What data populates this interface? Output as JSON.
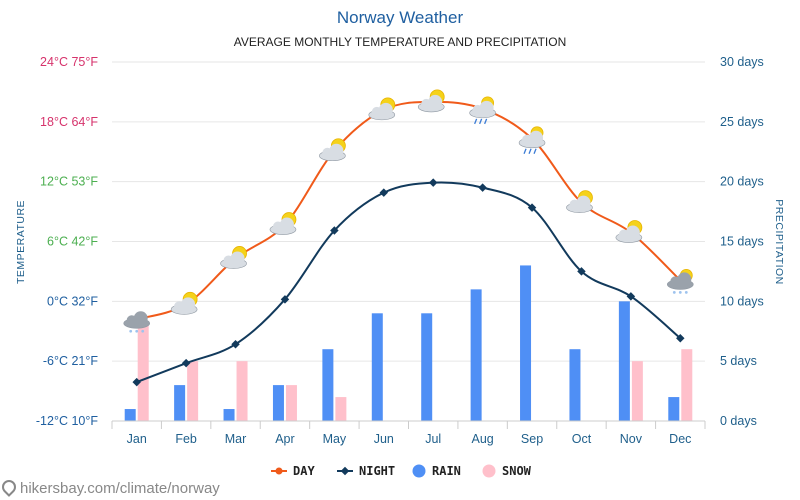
{
  "chart_data": {
    "type": "line+bar",
    "title": "Norway Weather",
    "subtitle": "AVERAGE MONTHLY TEMPERATURE AND PRECIPITATION",
    "ylabel_left": "TEMPERATURE",
    "ylabel_right": "PRECIPITATION",
    "categories": [
      "Jan",
      "Feb",
      "Mar",
      "Apr",
      "May",
      "Jun",
      "Jul",
      "Aug",
      "Sep",
      "Oct",
      "Nov",
      "Dec"
    ],
    "left_ticks": [
      {
        "value": -12,
        "label": "-12°C 10°F",
        "color": "#1f5fa0"
      },
      {
        "value": -6,
        "label": "-6°C 21°F",
        "color": "#1f5fa0"
      },
      {
        "value": 0,
        "label": "0°C 32°F",
        "color": "#1f5fa0"
      },
      {
        "value": 6,
        "label": "6°C 42°F",
        "color": "#4caf50"
      },
      {
        "value": 12,
        "label": "12°C 53°F",
        "color": "#4caf50"
      },
      {
        "value": 18,
        "label": "18°C 64°F",
        "color": "#d6336c"
      },
      {
        "value": 24,
        "label": "24°C 75°F",
        "color": "#d6336c"
      }
    ],
    "right_ticks": [
      {
        "value": 0,
        "label": "0 days"
      },
      {
        "value": 5,
        "label": "5 days"
      },
      {
        "value": 10,
        "label": "10 days"
      },
      {
        "value": 15,
        "label": "15 days"
      },
      {
        "value": 20,
        "label": "20 days"
      },
      {
        "value": 25,
        "label": "25 days"
      },
      {
        "value": 30,
        "label": "30 days"
      }
    ],
    "temp_range": [
      -12,
      24
    ],
    "days_range": [
      0,
      30
    ],
    "series": [
      {
        "name": "DAY",
        "kind": "line",
        "axis": "left",
        "color": "#f05a1a",
        "values": [
          -1.8,
          -0.3,
          4.3,
          7.7,
          15.1,
          19.2,
          20.0,
          19.3,
          16.3,
          9.9,
          6.9,
          2.1
        ]
      },
      {
        "name": "NIGHT",
        "kind": "line",
        "axis": "left",
        "color": "#123a5c",
        "values": [
          -8.1,
          -6.2,
          -4.3,
          0.2,
          7.1,
          10.9,
          11.9,
          11.4,
          9.4,
          3.0,
          0.5,
          -3.7
        ]
      },
      {
        "name": "RAIN",
        "kind": "bar",
        "axis": "right",
        "color": "#4f8ff5",
        "values": [
          1,
          3,
          1,
          3,
          6,
          9,
          9,
          11,
          13,
          6,
          10,
          2
        ]
      },
      {
        "name": "SNOW",
        "kind": "bar",
        "axis": "right",
        "color": "#ffc0cb",
        "values": [
          8,
          5,
          5,
          3,
          2,
          0,
          0,
          0,
          0,
          0,
          5,
          6
        ]
      }
    ],
    "weather_icons": [
      "snow-cloud-icon",
      "partly-cloudy-icon",
      "partly-cloudy-icon",
      "partly-cloudy-icon",
      "partly-cloudy-icon",
      "partly-cloudy-icon",
      "partly-cloudy-icon",
      "rain-cloud-icon",
      "rain-cloud-icon",
      "partly-cloudy-icon",
      "partly-cloudy-icon",
      "snow-cloud-icon"
    ],
    "legend": [
      "DAY",
      "NIGHT",
      "RAIN",
      "SNOW"
    ],
    "legend_position": "bottom-center",
    "grid": true
  },
  "footer": {
    "text": "hikersbay.com/climate/norway"
  },
  "colors": {
    "sun": "#f5d21a",
    "cloud": "#d8dde3",
    "gray_cloud": "#9aa2ab",
    "grid": "#e6e6e6"
  }
}
